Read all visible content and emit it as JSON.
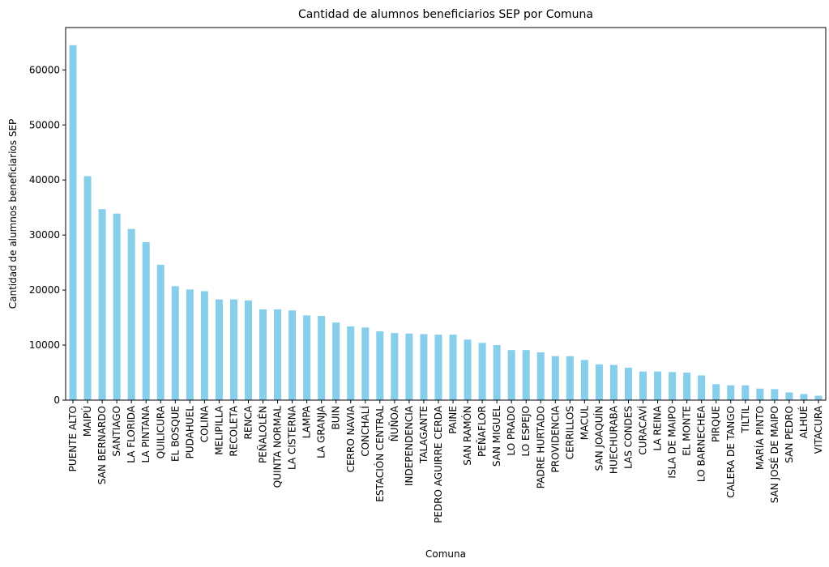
{
  "chart_data": {
    "type": "bar",
    "title": "Cantidad de alumnos beneficiarios SEP por Comuna",
    "xlabel": "Comuna",
    "ylabel": "Cantidad de alumnos beneficiarios SEP",
    "ylim": [
      0,
      67700
    ],
    "yticks": [
      0,
      10000,
      20000,
      30000,
      40000,
      50000,
      60000
    ],
    "bar_color": "#87ceeb",
    "grid": false,
    "legend": false,
    "categories": [
      "PUENTE ALTO",
      "MAIPÚ",
      "SAN BERNARDO",
      "SANTIAGO",
      "LA FLORIDA",
      "LA PINTANA",
      "QUILICURA",
      "EL BOSQUE",
      "PUDAHUEL",
      "COLINA",
      "MELIPILLA",
      "RECOLETA",
      "RENCA",
      "PEÑALOLÉN",
      "QUINTA NORMAL",
      "LA CISTERNA",
      "LAMPA",
      "LA GRANJA",
      "BUIN",
      "CERRO NAVIA",
      "CONCHALÍ",
      "ESTACIÓN CENTRAL",
      "ÑUÑOA",
      "INDEPENDENCIA",
      "TALAGANTE",
      "PEDRO AGUIRRE CERDA",
      "PAINE",
      "SAN RAMÓN",
      "PEÑAFLOR",
      "SAN MIGUEL",
      "LO PRADO",
      "LO ESPEJO",
      "PADRE HURTADO",
      "PROVIDENCIA",
      "CERRILLOS",
      "MACUL",
      "SAN JOAQUÍN",
      "HUECHURABA",
      "LAS CONDES",
      "CURACAVÍ",
      "LA REINA",
      "ISLA DE MAIPO",
      "EL MONTE",
      "LO BARNECHEA",
      "PIRQUE",
      "CALERA DE TANGO",
      "TILTIL",
      "MARÍA PINTO",
      "SAN JOSÉ DE MAIPO",
      "SAN PEDRO",
      "ALHUÉ",
      "VITACURA"
    ],
    "values": [
      64500,
      40700,
      34700,
      33900,
      31100,
      28700,
      24600,
      20700,
      20100,
      19800,
      18300,
      18300,
      18100,
      16500,
      16500,
      16300,
      15400,
      15300,
      14100,
      13400,
      13200,
      12500,
      12200,
      12100,
      12000,
      11900,
      11900,
      11000,
      10400,
      10000,
      9100,
      9100,
      8700,
      8000,
      8000,
      7300,
      6500,
      6400,
      5900,
      5200,
      5200,
      5100,
      5000,
      4500,
      2900,
      2700,
      2700,
      2100,
      2000,
      1400,
      1100,
      800
    ]
  }
}
